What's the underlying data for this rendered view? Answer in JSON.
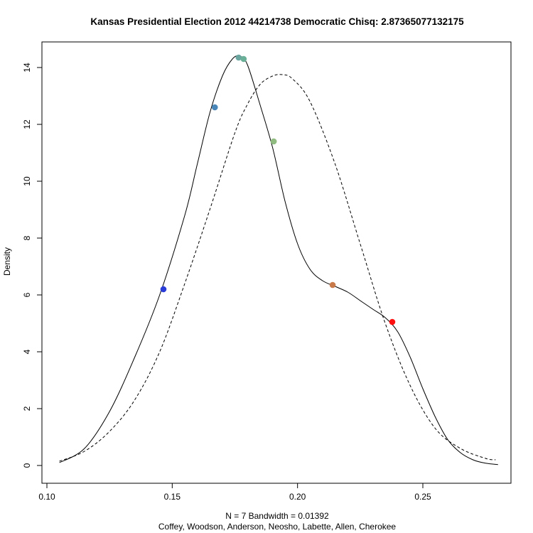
{
  "chart_data": {
    "type": "line",
    "title": "Kansas Presidential Election 2012 44214738 Democratic Chisq: 2.87365077132175",
    "xlabel": "N = 7   Bandwidth = 0.01392",
    "xlabel2": "Coffey, Woodson, Anderson, Neosho, Labette, Allen, Cherokee",
    "ylabel": "Density",
    "xlim": [
      0.1,
      0.28
    ],
    "ylim": [
      0,
      14.5
    ],
    "x_ticks": [
      "0.10",
      "0.15",
      "0.20",
      "0.25"
    ],
    "x_tick_values": [
      0.1,
      0.15,
      0.2,
      0.25
    ],
    "y_ticks": [
      "0",
      "2",
      "4",
      "6",
      "8",
      "10",
      "12",
      "14"
    ],
    "y_tick_values": [
      0,
      2,
      4,
      6,
      8,
      10,
      12,
      14
    ],
    "grid": false,
    "series": [
      {
        "style": "solid",
        "x": [
          0.105,
          0.115,
          0.125,
          0.135,
          0.145,
          0.155,
          0.16,
          0.165,
          0.17,
          0.174,
          0.177,
          0.18,
          0.185,
          0.19,
          0.195,
          0.2,
          0.205,
          0.21,
          0.215,
          0.22,
          0.225,
          0.23,
          0.235,
          0.24,
          0.245,
          0.25,
          0.255,
          0.26,
          0.265,
          0.27,
          0.275,
          0.28
        ],
        "y": [
          0.1,
          0.6,
          1.9,
          3.8,
          6.0,
          8.8,
          10.6,
          12.4,
          13.7,
          14.3,
          14.4,
          14.1,
          12.7,
          11.2,
          9.3,
          7.8,
          6.9,
          6.5,
          6.3,
          6.1,
          5.8,
          5.5,
          5.2,
          4.7,
          3.8,
          2.7,
          1.7,
          0.9,
          0.45,
          0.2,
          0.08,
          0.03
        ]
      },
      {
        "style": "dashed",
        "x": [
          0.105,
          0.115,
          0.125,
          0.135,
          0.145,
          0.155,
          0.165,
          0.175,
          0.18,
          0.185,
          0.19,
          0.194,
          0.198,
          0.205,
          0.215,
          0.225,
          0.235,
          0.245,
          0.255,
          0.265,
          0.275,
          0.279
        ],
        "y": [
          0.15,
          0.5,
          1.2,
          2.3,
          4.0,
          6.4,
          9.0,
          11.7,
          12.7,
          13.4,
          13.7,
          13.75,
          13.6,
          12.8,
          10.6,
          7.8,
          5.0,
          2.8,
          1.3,
          0.6,
          0.25,
          0.2
        ]
      }
    ],
    "points": [
      {
        "x": 0.1465,
        "y": 6.2,
        "color": "#2a3cd8"
      },
      {
        "x": 0.167,
        "y": 12.6,
        "color": "#4a87b8"
      },
      {
        "x": 0.1765,
        "y": 14.35,
        "color": "#6aa5a0"
      },
      {
        "x": 0.1785,
        "y": 14.3,
        "color": "#6aaf98"
      },
      {
        "x": 0.1905,
        "y": 11.4,
        "color": "#8fbb80"
      },
      {
        "x": 0.214,
        "y": 6.35,
        "color": "#c87a4a"
      },
      {
        "x": 0.2378,
        "y": 5.05,
        "color": "#ff1010"
      }
    ]
  }
}
